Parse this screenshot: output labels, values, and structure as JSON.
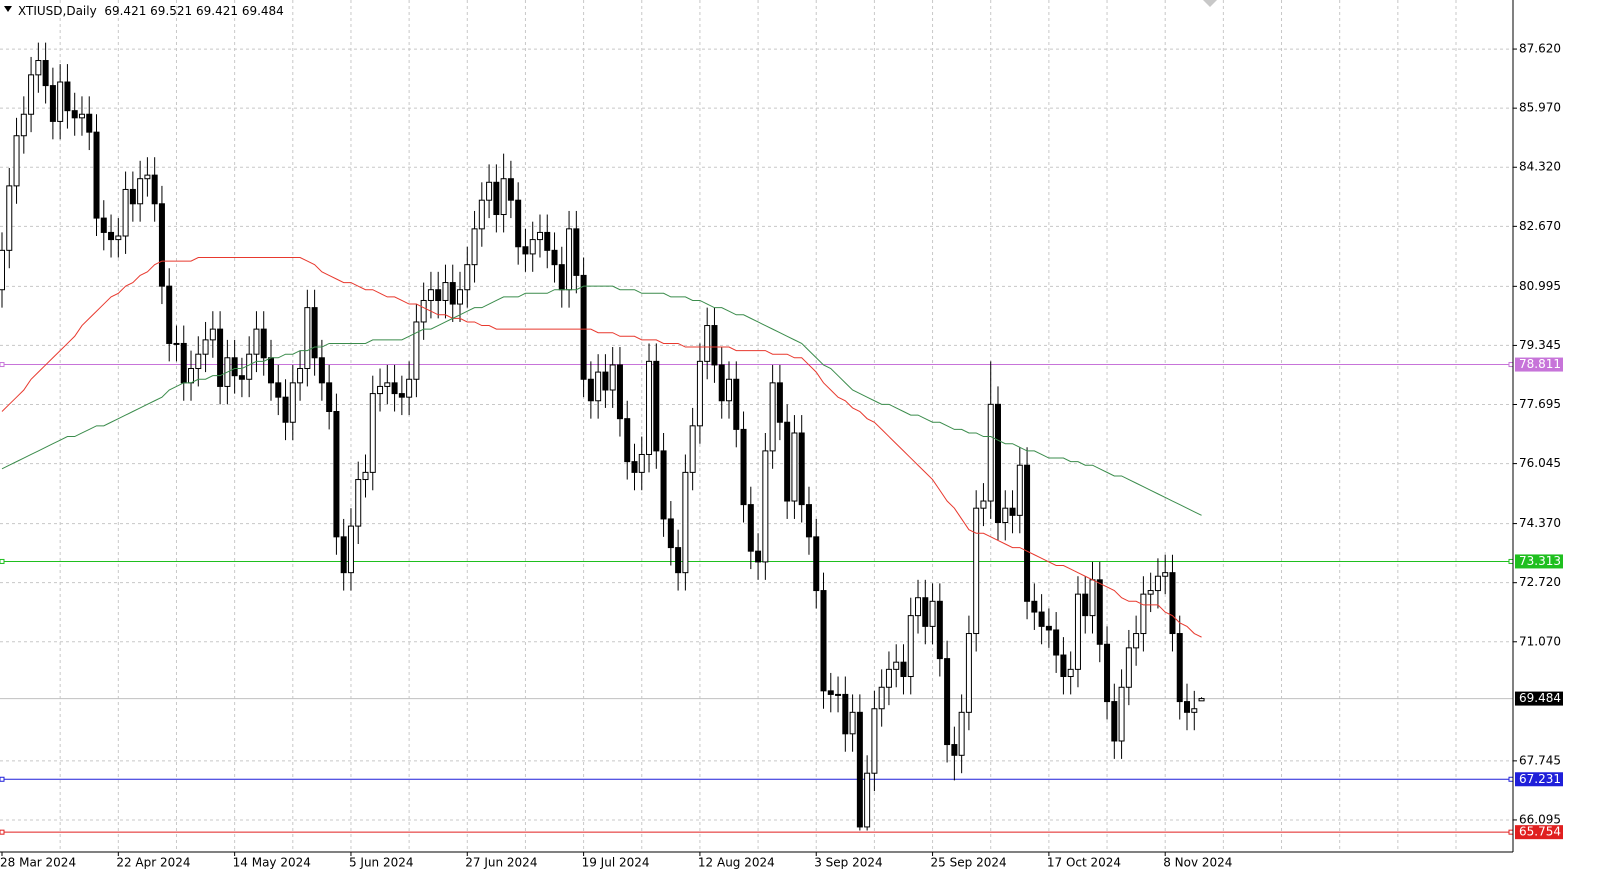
{
  "chart_data": {
    "type": "candlestick",
    "title": "XTIUSD,Daily",
    "categories": [
      "28 Mar 2024",
      null,
      null,
      null,
      null,
      null,
      null,
      null,
      null,
      null,
      null,
      null,
      null,
      null,
      null,
      null,
      "22 Apr 2024",
      null,
      null,
      null,
      null,
      null,
      null,
      null,
      null,
      null,
      null,
      null,
      null,
      null,
      null,
      null,
      "14 May 2024",
      null,
      null,
      null,
      null,
      null,
      null,
      null,
      null,
      null,
      null,
      null,
      null,
      null,
      null,
      null,
      "5 Jun 2024",
      null,
      null,
      null,
      null,
      null,
      null,
      null,
      null,
      null,
      null,
      null,
      null,
      null,
      null,
      null,
      "27 Jun 2024",
      null,
      null,
      null,
      null,
      null,
      null,
      null,
      null,
      null,
      null,
      null,
      null,
      null,
      null,
      null,
      "19 Jul 2024",
      null,
      null,
      null,
      null,
      null,
      null,
      null,
      null,
      null,
      null,
      null,
      null,
      null,
      null,
      null,
      "12 Aug 2024",
      null,
      null,
      null,
      null,
      null,
      null,
      null,
      null,
      null,
      null,
      null,
      null,
      null,
      null,
      null,
      "3 Sep 2024",
      null,
      null,
      null,
      null,
      null,
      null,
      null,
      null,
      null,
      null,
      null,
      null,
      null,
      null,
      null,
      "25 Sep 2024",
      null,
      null,
      null,
      null,
      null,
      null,
      null,
      null,
      null,
      null,
      null,
      null,
      null,
      null,
      null,
      "17 Oct 2024",
      null,
      null,
      null,
      null,
      null,
      null,
      null,
      null,
      null,
      null,
      null,
      null,
      null,
      null,
      null,
      "8 Nov 2024",
      null,
      null,
      null,
      null,
      null
    ],
    "open": [
      80.9,
      82.0,
      83.8,
      85.2,
      85.8,
      86.9,
      87.3,
      86.6,
      85.6,
      86.7,
      85.9,
      85.7,
      85.8,
      85.3,
      82.9,
      82.5,
      82.3,
      82.4,
      83.7,
      83.3,
      84.0,
      84.1,
      83.3,
      81.0,
      79.4,
      79.4,
      78.3,
      78.7,
      79.1,
      79.5,
      79.8,
      78.2,
      79.0,
      78.5,
      78.4,
      79.1,
      79.8,
      79.0,
      78.3,
      77.9,
      77.2,
      78.3,
      78.7,
      80.4,
      79.0,
      78.3,
      77.5,
      74.0,
      73.0,
      74.3,
      75.6,
      75.8,
      78.0,
      78.2,
      78.3,
      78.0,
      77.9,
      78.4,
      80.0,
      80.6,
      80.9,
      80.6,
      81.1,
      80.5,
      80.9,
      81.6,
      82.6,
      83.4,
      83.9,
      83.0,
      84.0,
      83.4,
      82.1,
      81.9,
      82.3,
      82.5,
      82.0,
      81.6,
      80.9,
      82.6,
      81.3,
      78.4,
      77.8,
      78.6,
      78.1,
      78.8,
      77.3,
      76.1,
      75.8,
      76.3,
      78.9,
      76.4,
      74.5,
      73.7,
      73.0,
      75.8,
      77.1,
      78.9,
      79.9,
      78.8,
      77.8,
      78.4,
      77.0,
      74.9,
      73.6,
      73.3,
      76.4,
      78.3,
      77.2,
      75.0,
      76.9,
      74.9,
      74.0,
      72.5,
      69.7,
      69.6,
      69.6,
      68.5,
      69.1,
      65.9,
      67.4,
      69.2,
      69.8,
      70.3,
      70.5,
      70.1,
      71.8,
      72.3,
      71.5,
      72.2,
      70.6,
      68.2,
      67.9,
      69.1,
      71.3,
      74.8,
      75.0,
      77.7,
      74.4,
      74.8,
      74.6,
      76.0,
      72.2,
      71.9,
      71.5,
      71.4,
      70.7,
      70.1,
      70.3,
      72.4,
      71.8,
      72.8,
      71.0,
      69.4,
      68.3,
      69.8,
      70.9,
      71.3,
      72.4,
      72.5,
      72.9,
      73.0,
      71.3,
      69.4,
      69.1,
      69.421
    ],
    "high": [
      82.5,
      84.3,
      85.7,
      86.3,
      87.4,
      87.8,
      87.8,
      87.1,
      87.2,
      87.2,
      86.4,
      86.3,
      86.3,
      85.8,
      83.4,
      83.0,
      82.9,
      84.2,
      84.2,
      84.5,
      84.6,
      84.6,
      83.8,
      81.5,
      79.9,
      79.9,
      79.2,
      79.6,
      80.0,
      80.3,
      80.3,
      79.5,
      79.5,
      79.0,
      79.6,
      80.3,
      80.3,
      79.5,
      78.8,
      78.4,
      78.8,
      79.2,
      80.9,
      80.9,
      79.5,
      78.8,
      78.0,
      74.5,
      74.8,
      76.1,
      76.3,
      78.5,
      78.7,
      78.8,
      78.8,
      78.5,
      78.9,
      80.5,
      81.1,
      81.4,
      81.4,
      81.6,
      81.6,
      81.4,
      82.1,
      83.1,
      83.9,
      84.4,
      84.4,
      84.7,
      84.5,
      83.9,
      82.6,
      82.8,
      83.0,
      83.0,
      82.5,
      82.1,
      83.1,
      83.1,
      81.8,
      78.9,
      79.1,
      79.1,
      79.3,
      79.3,
      77.8,
      76.6,
      76.8,
      79.4,
      79.4,
      76.9,
      75.0,
      74.2,
      76.3,
      77.6,
      79.4,
      80.4,
      80.4,
      79.3,
      78.9,
      78.9,
      77.5,
      75.4,
      74.1,
      76.9,
      78.8,
      78.8,
      77.7,
      77.4,
      77.4,
      75.4,
      74.5,
      73.0,
      70.2,
      70.1,
      70.1,
      69.6,
      69.6,
      67.9,
      69.7,
      70.3,
      70.8,
      71.0,
      71.0,
      72.3,
      72.8,
      72.8,
      72.7,
      72.7,
      71.1,
      68.7,
      69.6,
      71.8,
      75.3,
      75.5,
      78.9,
      78.2,
      75.3,
      75.3,
      76.5,
      76.5,
      72.7,
      72.4,
      72.0,
      71.9,
      71.2,
      70.8,
      72.9,
      72.9,
      73.3,
      73.3,
      71.5,
      69.9,
      70.3,
      71.4,
      71.8,
      72.9,
      73.0,
      73.4,
      73.5,
      73.5,
      71.8,
      69.9,
      69.7,
      69.521
    ],
    "low": [
      80.4,
      81.5,
      83.3,
      84.7,
      85.3,
      86.4,
      86.1,
      85.1,
      85.1,
      85.4,
      85.2,
      85.2,
      84.8,
      82.4,
      82.0,
      81.8,
      81.8,
      81.9,
      82.8,
      82.8,
      83.5,
      82.8,
      80.5,
      78.9,
      78.9,
      77.8,
      77.8,
      78.2,
      78.6,
      79.0,
      77.7,
      77.7,
      78.0,
      77.9,
      77.9,
      78.6,
      78.5,
      77.8,
      77.4,
      76.7,
      76.7,
      77.8,
      78.2,
      78.5,
      77.8,
      77.0,
      73.5,
      72.5,
      72.5,
      73.8,
      75.1,
      75.3,
      77.5,
      77.7,
      77.5,
      77.4,
      77.4,
      77.9,
      79.5,
      80.1,
      80.1,
      80.1,
      80.0,
      80.0,
      80.4,
      81.1,
      82.1,
      82.9,
      82.5,
      82.5,
      82.9,
      81.6,
      81.4,
      81.4,
      81.8,
      81.5,
      81.1,
      80.4,
      80.4,
      80.8,
      77.9,
      77.3,
      77.3,
      77.6,
      77.6,
      76.8,
      75.6,
      75.3,
      75.3,
      75.8,
      75.9,
      74.0,
      73.2,
      72.5,
      72.5,
      75.3,
      76.6,
      78.4,
      78.3,
      77.3,
      77.3,
      76.5,
      74.4,
      73.1,
      72.8,
      72.8,
      75.9,
      76.7,
      74.5,
      74.5,
      74.4,
      73.5,
      72.0,
      69.2,
      69.1,
      69.1,
      68.0,
      68.0,
      65.8,
      65.8,
      66.9,
      68.7,
      69.3,
      69.8,
      69.6,
      69.6,
      71.3,
      71.0,
      71.0,
      70.1,
      67.7,
      67.2,
      67.4,
      68.6,
      70.8,
      74.3,
      74.5,
      73.9,
      73.9,
      74.1,
      74.1,
      71.7,
      71.4,
      71.0,
      70.9,
      70.2,
      69.6,
      69.6,
      69.8,
      71.3,
      71.3,
      70.5,
      68.9,
      67.8,
      67.8,
      69.3,
      70.4,
      70.8,
      71.9,
      72.0,
      72.4,
      70.8,
      68.9,
      68.6,
      68.6,
      69.421
    ],
    "close": [
      82.0,
      83.8,
      85.2,
      85.8,
      86.9,
      87.3,
      86.6,
      85.6,
      86.7,
      85.9,
      85.7,
      85.8,
      85.3,
      82.9,
      82.5,
      82.3,
      82.4,
      83.7,
      83.3,
      84.0,
      84.1,
      83.3,
      81.0,
      79.4,
      79.4,
      78.3,
      78.7,
      79.1,
      79.5,
      79.8,
      78.2,
      79.0,
      78.5,
      78.4,
      79.1,
      79.8,
      79.0,
      78.3,
      77.9,
      77.2,
      78.3,
      78.7,
      80.4,
      79.0,
      78.3,
      77.5,
      74.0,
      73.0,
      74.3,
      75.6,
      75.8,
      78.0,
      78.2,
      78.3,
      78.0,
      77.9,
      78.4,
      80.0,
      80.6,
      80.9,
      80.6,
      81.1,
      80.5,
      80.9,
      81.6,
      82.6,
      83.4,
      83.9,
      83.0,
      84.0,
      83.4,
      82.1,
      81.9,
      82.3,
      82.5,
      82.0,
      81.6,
      80.9,
      82.6,
      81.3,
      78.4,
      77.8,
      78.6,
      78.1,
      78.8,
      77.3,
      76.1,
      75.8,
      76.3,
      78.9,
      76.4,
      74.5,
      73.7,
      73.0,
      75.8,
      77.1,
      78.9,
      79.9,
      78.8,
      77.8,
      78.4,
      77.0,
      74.9,
      73.6,
      73.3,
      76.4,
      78.3,
      77.2,
      75.0,
      76.9,
      74.9,
      74.0,
      72.5,
      69.7,
      69.6,
      69.6,
      68.5,
      69.1,
      65.9,
      67.4,
      69.2,
      69.8,
      70.3,
      70.5,
      70.1,
      71.8,
      72.3,
      71.5,
      72.2,
      70.6,
      68.2,
      67.9,
      69.1,
      71.3,
      74.8,
      75.0,
      77.7,
      74.4,
      74.8,
      74.6,
      76.0,
      72.2,
      71.9,
      71.5,
      71.4,
      70.7,
      70.1,
      70.3,
      72.4,
      71.8,
      72.8,
      71.0,
      69.4,
      68.3,
      69.8,
      70.9,
      71.3,
      72.4,
      72.5,
      72.9,
      73.0,
      71.3,
      69.4,
      69.1,
      69.2,
      69.484
    ],
    "up_color": "#ffffff",
    "down_color": "#000000",
    "series": [
      {
        "color": "#e8392e",
        "values": [
          77.5,
          77.7,
          77.9,
          78.1,
          78.4,
          78.6,
          78.8,
          79.0,
          79.2,
          79.4,
          79.6,
          79.9,
          80.1,
          80.3,
          80.5,
          80.7,
          80.8,
          81.0,
          81.1,
          81.3,
          81.4,
          81.6,
          81.7,
          81.7,
          81.7,
          81.7,
          81.7,
          81.8,
          81.8,
          81.8,
          81.8,
          81.8,
          81.8,
          81.8,
          81.8,
          81.8,
          81.8,
          81.8,
          81.8,
          81.8,
          81.8,
          81.8,
          81.7,
          81.6,
          81.4,
          81.3,
          81.2,
          81.1,
          81.1,
          81.0,
          80.9,
          80.9,
          80.8,
          80.7,
          80.7,
          80.6,
          80.5,
          80.5,
          80.4,
          80.3,
          80.2,
          80.2,
          80.1,
          80.1,
          80.0,
          80.0,
          79.9,
          79.9,
          79.8,
          79.8,
          79.8,
          79.8,
          79.8,
          79.8,
          79.8,
          79.8,
          79.8,
          79.8,
          79.8,
          79.8,
          79.8,
          79.8,
          79.7,
          79.7,
          79.7,
          79.6,
          79.6,
          79.6,
          79.5,
          79.5,
          79.5,
          79.4,
          79.4,
          79.4,
          79.3,
          79.3,
          79.3,
          79.3,
          79.3,
          79.3,
          79.3,
          79.2,
          79.2,
          79.2,
          79.2,
          79.2,
          79.1,
          79.1,
          79.1,
          79.0,
          79.0,
          78.8,
          78.6,
          78.3,
          78.1,
          77.9,
          77.8,
          77.6,
          77.5,
          77.3,
          77.2,
          77.0,
          76.8,
          76.6,
          76.4,
          76.2,
          76.0,
          75.8,
          75.6,
          75.3,
          75.0,
          74.8,
          74.5,
          74.2,
          74.1,
          74.1,
          74.0,
          73.9,
          73.8,
          73.7,
          73.7,
          73.6,
          73.5,
          73.4,
          73.3,
          73.2,
          73.2,
          73.1,
          73.0,
          72.9,
          72.8,
          72.7,
          72.6,
          72.5,
          72.3,
          72.2,
          72.2,
          72.1,
          72.1,
          72.1,
          71.9,
          71.8,
          71.6,
          71.5,
          71.3,
          71.2
        ]
      },
      {
        "color": "#3b8c4c",
        "values": [
          75.9,
          76.0,
          76.1,
          76.2,
          76.3,
          76.4,
          76.5,
          76.6,
          76.7,
          76.8,
          76.8,
          76.9,
          77.0,
          77.1,
          77.1,
          77.2,
          77.3,
          77.4,
          77.5,
          77.6,
          77.7,
          77.8,
          77.9,
          78.1,
          78.2,
          78.3,
          78.3,
          78.4,
          78.4,
          78.5,
          78.5,
          78.6,
          78.7,
          78.7,
          78.8,
          78.9,
          78.9,
          79.0,
          79.0,
          79.1,
          79.1,
          79.2,
          79.2,
          79.3,
          79.3,
          79.4,
          79.4,
          79.4,
          79.4,
          79.4,
          79.4,
          79.5,
          79.5,
          79.5,
          79.5,
          79.5,
          79.6,
          79.7,
          79.8,
          79.8,
          79.9,
          80.0,
          80.1,
          80.2,
          80.3,
          80.4,
          80.4,
          80.5,
          80.6,
          80.7,
          80.7,
          80.7,
          80.8,
          80.8,
          80.8,
          80.8,
          80.9,
          80.9,
          80.9,
          80.9,
          81.0,
          81.0,
          81.0,
          81.0,
          81.0,
          80.9,
          80.9,
          80.9,
          80.8,
          80.8,
          80.8,
          80.8,
          80.7,
          80.7,
          80.7,
          80.6,
          80.6,
          80.5,
          80.4,
          80.4,
          80.3,
          80.2,
          80.2,
          80.1,
          80.0,
          79.9,
          79.8,
          79.7,
          79.6,
          79.5,
          79.4,
          79.2,
          79.0,
          78.8,
          78.7,
          78.5,
          78.3,
          78.1,
          78.0,
          77.9,
          77.8,
          77.7,
          77.7,
          77.6,
          77.5,
          77.4,
          77.4,
          77.3,
          77.2,
          77.2,
          77.1,
          77.0,
          77.0,
          76.9,
          76.9,
          76.8,
          76.8,
          76.7,
          76.6,
          76.6,
          76.5,
          76.4,
          76.4,
          76.3,
          76.2,
          76.2,
          76.2,
          76.1,
          76.1,
          76.0,
          76.0,
          75.9,
          75.8,
          75.7,
          75.7,
          75.6,
          75.5,
          75.4,
          75.3,
          75.2,
          75.1,
          75.0,
          74.9,
          74.8,
          74.7,
          74.6
        ]
      }
    ],
    "hlines": [
      {
        "value": 78.811,
        "color": "#c774d9"
      },
      {
        "value": 73.313,
        "color": "#1fbf1f"
      },
      {
        "value": 67.231,
        "color": "#1f1fd9"
      },
      {
        "value": 65.754,
        "color": "#e01f1f"
      }
    ],
    "ylim": [
      65.2,
      88.99
    ],
    "yticks": [
      {
        "value": 87.62,
        "label": "87.620"
      },
      {
        "value": 85.97,
        "label": "85.970"
      },
      {
        "value": 84.32,
        "label": "84.320"
      },
      {
        "value": 82.67,
        "label": "82.670"
      },
      80.995,
      79.345,
      77.695,
      76.045,
      {
        "value": 74.37,
        "label": "74.370"
      },
      {
        "value": 72.72,
        "label": "72.720"
      },
      {
        "value": 71.07,
        "label": "71.070"
      },
      67.745,
      66.095
    ],
    "grid": true
  }
}
